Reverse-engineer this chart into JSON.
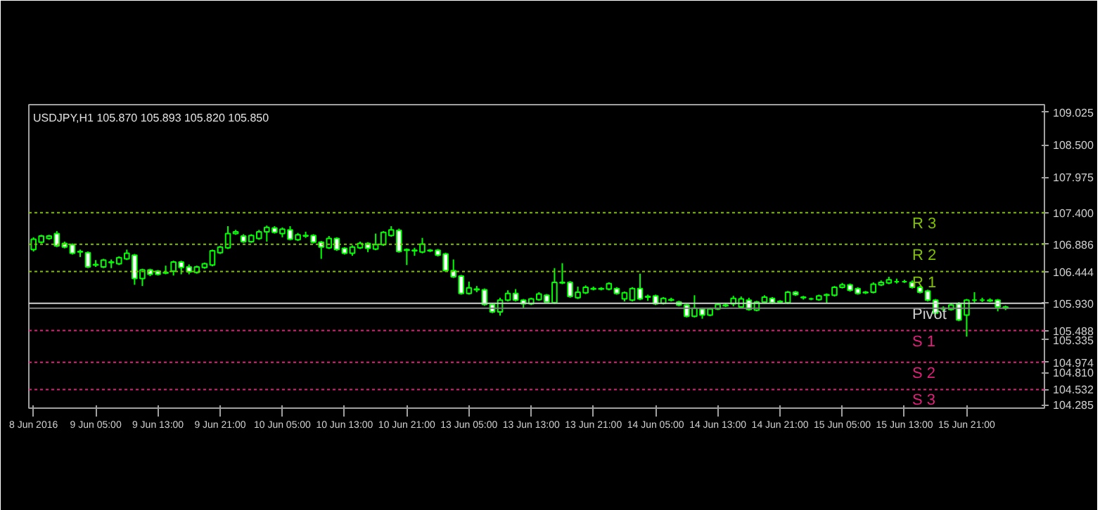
{
  "chart_data": {
    "type": "candlestick",
    "title": "USDJPY,H1  105.870 105.893 105.820 105.850",
    "color": "#00ff00",
    "categories": [
      "8 Jun 2016",
      null,
      null,
      null,
      null,
      null,
      null,
      null,
      "9 Jun 05:00",
      null,
      null,
      null,
      null,
      null,
      null,
      null,
      "9 Jun 13:00",
      null,
      null,
      null,
      null,
      null,
      null,
      null,
      "9 Jun 21:00",
      null,
      null,
      null,
      null,
      null,
      null,
      null,
      "10 Jun 05:00",
      null,
      null,
      null,
      null,
      null,
      null,
      null,
      "10 Jun 13:00",
      null,
      null,
      null,
      null,
      null,
      null,
      null,
      "10 Jun 21:00",
      null,
      null,
      null,
      null,
      null,
      null,
      null,
      "13 Jun 05:00",
      null,
      null,
      null,
      null,
      null,
      null,
      null,
      "13 Jun 13:00",
      null,
      null,
      null,
      null,
      null,
      null,
      null,
      "13 Jun 21:00",
      null,
      null,
      null,
      null,
      null,
      null,
      null,
      "14 Jun 05:00",
      null,
      null,
      null,
      null,
      null,
      null,
      null,
      "14 Jun 13:00",
      null,
      null,
      null,
      null,
      null,
      null,
      null,
      "14 Jun 21:00",
      null,
      null,
      null,
      null,
      null,
      null,
      null,
      "15 Jun 05:00",
      null,
      null,
      null,
      null,
      null,
      null,
      null,
      "15 Jun 13:00",
      null,
      null,
      null,
      null,
      null,
      null,
      null,
      "15 Jun 21:00",
      null,
      null,
      null,
      null,
      null
    ],
    "ohlc": [
      [
        106.8,
        107.0,
        106.77,
        106.97
      ],
      [
        106.92,
        107.04,
        106.9,
        107.02
      ],
      [
        106.98,
        107.04,
        106.96,
        107.02
      ],
      [
        107.06,
        107.1,
        106.84,
        106.86
      ],
      [
        106.9,
        106.93,
        106.82,
        106.84
      ],
      [
        106.88,
        106.9,
        106.72,
        106.74
      ],
      [
        106.77,
        106.8,
        106.68,
        106.76
      ],
      [
        106.75,
        106.77,
        106.5,
        106.52
      ],
      [
        106.56,
        106.63,
        106.52,
        106.55
      ],
      [
        106.52,
        106.65,
        106.5,
        106.63
      ],
      [
        106.59,
        106.64,
        106.5,
        106.6
      ],
      [
        106.57,
        106.69,
        106.55,
        106.67
      ],
      [
        106.65,
        106.8,
        106.63,
        106.74
      ],
      [
        106.71,
        106.73,
        106.23,
        106.33
      ],
      [
        106.33,
        106.49,
        106.21,
        106.47
      ],
      [
        106.47,
        106.49,
        106.37,
        106.4
      ],
      [
        106.45,
        106.47,
        106.38,
        106.4
      ],
      [
        106.42,
        106.54,
        106.4,
        106.43
      ],
      [
        106.45,
        106.62,
        106.38,
        106.6
      ],
      [
        106.6,
        106.62,
        106.4,
        106.51
      ],
      [
        106.52,
        106.56,
        106.4,
        106.44
      ],
      [
        106.43,
        106.54,
        106.41,
        106.52
      ],
      [
        106.51,
        106.59,
        106.49,
        106.57
      ],
      [
        106.55,
        106.8,
        106.53,
        106.78
      ],
      [
        106.75,
        106.86,
        106.73,
        106.84
      ],
      [
        106.83,
        107.18,
        106.81,
        107.06
      ],
      [
        107.06,
        107.12,
        107.04,
        107.09
      ],
      [
        107.02,
        107.05,
        106.91,
        106.93
      ],
      [
        106.93,
        107.05,
        106.91,
        107.03
      ],
      [
        106.98,
        107.12,
        106.96,
        107.09
      ],
      [
        107.09,
        107.19,
        106.93,
        107.16
      ],
      [
        107.15,
        107.18,
        107.06,
        107.08
      ],
      [
        107.06,
        107.16,
        107.0,
        107.13
      ],
      [
        107.12,
        107.18,
        106.95,
        106.97
      ],
      [
        106.96,
        107.07,
        106.94,
        107.04
      ],
      [
        107.03,
        107.09,
        106.99,
        107.02
      ],
      [
        107.03,
        107.05,
        106.9,
        106.92
      ],
      [
        106.92,
        106.94,
        106.65,
        106.84
      ],
      [
        106.83,
        107.02,
        106.81,
        106.98
      ],
      [
        106.98,
        107.0,
        106.78,
        106.8
      ],
      [
        106.82,
        106.84,
        106.72,
        106.74
      ],
      [
        106.74,
        106.87,
        106.7,
        106.84
      ],
      [
        106.83,
        106.93,
        106.81,
        106.9
      ],
      [
        106.9,
        106.92,
        106.76,
        106.82
      ],
      [
        106.81,
        107.06,
        106.79,
        106.88
      ],
      [
        106.88,
        107.1,
        106.86,
        107.08
      ],
      [
        107.03,
        107.18,
        107.01,
        107.12
      ],
      [
        107.11,
        107.14,
        106.75,
        106.77
      ],
      [
        106.8,
        106.82,
        106.55,
        106.79
      ],
      [
        106.79,
        106.83,
        106.7,
        106.78
      ],
      [
        106.76,
        106.99,
        106.74,
        106.89
      ],
      [
        106.79,
        106.81,
        106.76,
        106.78
      ],
      [
        106.79,
        106.81,
        106.69,
        106.71
      ],
      [
        106.73,
        106.75,
        106.44,
        106.46
      ],
      [
        106.46,
        106.64,
        106.34,
        106.36
      ],
      [
        106.37,
        106.39,
        106.07,
        106.09
      ],
      [
        106.09,
        106.28,
        106.07,
        106.18
      ],
      [
        106.16,
        106.21,
        106.11,
        106.15
      ],
      [
        106.15,
        106.17,
        105.89,
        105.91
      ],
      [
        105.91,
        105.93,
        105.77,
        105.79
      ],
      [
        105.79,
        106.02,
        105.73,
        105.98
      ],
      [
        105.98,
        106.14,
        105.96,
        106.09
      ],
      [
        106.09,
        106.16,
        105.96,
        105.98
      ],
      [
        105.98,
        106.0,
        105.85,
        105.92
      ],
      [
        105.92,
        106.02,
        105.9,
        106.0
      ],
      [
        105.99,
        106.11,
        105.97,
        106.08
      ],
      [
        106.06,
        106.08,
        105.93,
        105.95
      ],
      [
        105.94,
        106.5,
        105.92,
        106.27
      ],
      [
        106.27,
        106.58,
        106.24,
        106.26
      ],
      [
        106.27,
        106.29,
        106.02,
        106.04
      ],
      [
        106.02,
        106.2,
        106.0,
        106.11
      ],
      [
        106.1,
        106.22,
        106.08,
        106.19
      ],
      [
        106.17,
        106.2,
        106.14,
        106.16
      ],
      [
        106.16,
        106.19,
        106.14,
        106.17
      ],
      [
        106.16,
        106.27,
        106.14,
        106.25
      ],
      [
        106.17,
        106.19,
        106.07,
        106.09
      ],
      [
        106.0,
        106.12,
        105.96,
        106.1
      ],
      [
        105.98,
        106.19,
        105.96,
        106.17
      ],
      [
        106.17,
        106.41,
        105.98,
        106.0
      ],
      [
        106.03,
        106.07,
        105.97,
        106.04
      ],
      [
        106.05,
        106.07,
        105.9,
        105.92
      ],
      [
        105.93,
        106.03,
        105.91,
        106.01
      ],
      [
        105.98,
        106.02,
        105.96,
        105.99
      ],
      [
        105.95,
        105.97,
        105.88,
        105.9
      ],
      [
        105.9,
        105.92,
        105.7,
        105.72
      ],
      [
        105.72,
        106.06,
        105.7,
        105.85
      ],
      [
        105.84,
        105.86,
        105.68,
        105.74
      ],
      [
        105.74,
        105.86,
        105.72,
        105.84
      ],
      [
        105.84,
        105.93,
        105.82,
        105.91
      ],
      [
        105.89,
        105.93,
        105.87,
        105.9
      ],
      [
        105.92,
        106.05,
        105.88,
        106.01
      ],
      [
        105.87,
        106.04,
        105.85,
        106.0
      ],
      [
        105.98,
        106.02,
        105.81,
        105.83
      ],
      [
        105.82,
        105.97,
        105.8,
        105.95
      ],
      [
        105.95,
        106.06,
        105.93,
        106.03
      ],
      [
        106.01,
        106.03,
        105.92,
        105.94
      ],
      [
        105.96,
        105.98,
        105.93,
        105.95
      ],
      [
        105.94,
        106.13,
        105.92,
        106.11
      ],
      [
        106.11,
        106.13,
        106.05,
        106.07
      ],
      [
        106.03,
        106.05,
        105.99,
        106.02
      ],
      [
        106.0,
        106.02,
        105.98,
        106.0
      ],
      [
        105.99,
        106.07,
        105.97,
        106.05
      ],
      [
        106.06,
        106.09,
        105.93,
        106.07
      ],
      [
        106.06,
        106.21,
        106.04,
        106.19
      ],
      [
        106.19,
        106.26,
        106.17,
        106.23
      ],
      [
        106.23,
        106.25,
        106.12,
        106.14
      ],
      [
        106.17,
        106.19,
        106.07,
        106.09
      ],
      [
        106.1,
        106.13,
        106.08,
        106.11
      ],
      [
        106.11,
        106.27,
        106.09,
        106.24
      ],
      [
        106.23,
        106.3,
        106.21,
        106.27
      ],
      [
        106.26,
        106.36,
        106.24,
        106.31
      ],
      [
        106.28,
        106.33,
        106.25,
        106.28
      ],
      [
        106.28,
        106.31,
        106.26,
        106.28
      ],
      [
        106.27,
        106.3,
        106.17,
        106.19
      ],
      [
        106.19,
        106.21,
        106.09,
        106.11
      ],
      [
        106.13,
        106.15,
        105.96,
        105.98
      ],
      [
        105.98,
        106.0,
        105.75,
        105.77
      ],
      [
        105.84,
        105.88,
        105.8,
        105.85
      ],
      [
        105.83,
        105.93,
        105.81,
        105.9
      ],
      [
        105.92,
        105.95,
        105.64,
        105.66
      ],
      [
        105.74,
        106.0,
        105.39,
        105.98
      ],
      [
        105.98,
        106.11,
        105.94,
        105.98
      ],
      [
        105.98,
        106.02,
        105.95,
        105.98
      ],
      [
        105.97,
        106.01,
        105.95,
        105.98
      ],
      [
        105.98,
        106.0,
        105.8,
        105.87
      ],
      [
        105.87,
        105.893,
        105.82,
        105.85
      ]
    ],
    "ylim": [
      104.23,
      109.15
    ],
    "yticks": [
      {
        "value": 109.025,
        "label": "109.025"
      },
      {
        "value": 108.5,
        "label": "108.500"
      },
      {
        "value": 107.975,
        "label": "107.975"
      },
      {
        "value": 107.4,
        "label": "107.400"
      },
      {
        "value": 106.886,
        "label": "106.886"
      },
      {
        "value": 106.444,
        "label": "106.444"
      },
      {
        "value": 105.93,
        "label": "105.930"
      },
      {
        "value": 105.488,
        "label": "105.488"
      },
      {
        "value": 105.335,
        "label": "105.335"
      },
      {
        "value": 104.974,
        "label": "104.974"
      },
      {
        "value": 104.81,
        "label": "104.810"
      },
      {
        "value": 104.532,
        "label": "104.532"
      },
      {
        "value": 104.285,
        "label": "104.285"
      }
    ],
    "ref_lines": [
      {
        "axis": "y",
        "value": 107.4,
        "label": "R 3",
        "color": "#80c000",
        "line_style": "dotted"
      },
      {
        "axis": "y",
        "value": 106.886,
        "label": "R 2",
        "color": "#80c000",
        "line_style": "dotted"
      },
      {
        "axis": "y",
        "value": 106.444,
        "label": "R 1",
        "color": "#80c000",
        "line_style": "dotted"
      },
      {
        "axis": "y",
        "value": 105.93,
        "label": "Pivot",
        "color": "#d0d0d0",
        "line_style": "solid"
      },
      {
        "axis": "y",
        "value": 105.85,
        "label": null,
        "color": "#808080",
        "line_style": "solid"
      },
      {
        "axis": "y",
        "value": 105.488,
        "label": "S 1",
        "color": "#e0207a",
        "line_style": "dotted"
      },
      {
        "axis": "y",
        "value": 104.974,
        "label": "S 2",
        "color": "#e0207a",
        "line_style": "dotted"
      },
      {
        "axis": "y",
        "value": 104.532,
        "label": "S 3",
        "color": "#e0207a",
        "line_style": "dotted"
      }
    ]
  }
}
